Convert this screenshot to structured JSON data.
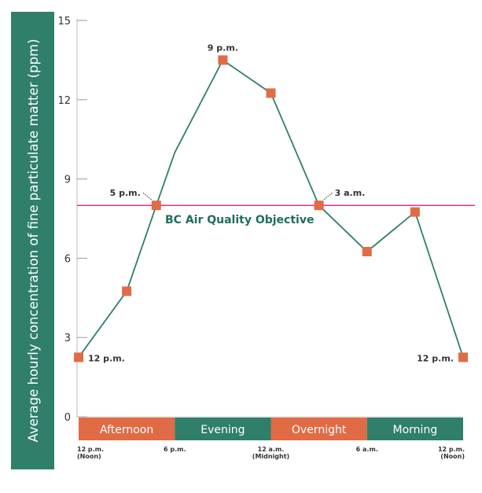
{
  "chart_data": {
    "type": "line",
    "ylabel": "Average hourly concentration of fine particulate matter (ppm)",
    "ylim": [
      0,
      15
    ],
    "yticks": [
      0,
      3,
      6,
      9,
      12,
      15
    ],
    "xlim_hours_from_noon": [
      0,
      24
    ],
    "x_tick_labels": [
      {
        "hour": 0,
        "lines": [
          "12 p.m.",
          "(Noon)"
        ]
      },
      {
        "hour": 6,
        "lines": [
          "6 p.m."
        ]
      },
      {
        "hour": 12,
        "lines": [
          "12 a.m.",
          "(Midnight)"
        ]
      },
      {
        "hour": 18,
        "lines": [
          "6 a.m."
        ]
      },
      {
        "hour": 24,
        "lines": [
          "12 p.m.",
          "(Noon)"
        ]
      }
    ],
    "points": [
      {
        "x": "12 p.m.",
        "hour": 0,
        "y": 2.25,
        "marker": true
      },
      {
        "x": "3 p.m.",
        "hour": 3,
        "y": 4.75,
        "marker": true
      },
      {
        "x": "5 p.m.",
        "hour": 4.85,
        "y": 8.0,
        "marker": true
      },
      {
        "x": "6 p.m.",
        "hour": 6,
        "y": 10.0,
        "marker": false
      },
      {
        "x": "9 p.m.",
        "hour": 9,
        "y": 13.5,
        "marker": true
      },
      {
        "x": "12 a.m.",
        "hour": 12,
        "y": 12.25,
        "marker": true
      },
      {
        "x": "3 a.m.",
        "hour": 15,
        "y": 8.0,
        "marker": true
      },
      {
        "x": "6 a.m.",
        "hour": 18,
        "y": 6.25,
        "marker": true
      },
      {
        "x": "9 a.m.",
        "hour": 21,
        "y": 7.75,
        "marker": true
      },
      {
        "x": "12 p.m.",
        "hour": 24,
        "y": 2.25,
        "marker": true
      }
    ],
    "annotations": [
      {
        "text": "12 p.m.",
        "point": 0
      },
      {
        "text": "5 p.m.",
        "point": 2
      },
      {
        "text": "9 p.m.",
        "point": 4
      },
      {
        "text": "3 a.m.",
        "point": 6
      },
      {
        "text": "12 p.m.",
        "point": 9
      }
    ],
    "reference_line": {
      "y": 8,
      "label": "BC Air Quality Objective",
      "color": "#e0338f"
    },
    "periods": [
      {
        "label": "Afternoon",
        "from": 0,
        "to": 6,
        "color": "#e06b45"
      },
      {
        "label": "Evening",
        "from": 6,
        "to": 12,
        "color": "#2f7f6a"
      },
      {
        "label": "Overnight",
        "from": 12,
        "to": 18,
        "color": "#e06b45"
      },
      {
        "label": "Morning",
        "from": 18,
        "to": 24,
        "color": "#2f7f6a"
      }
    ],
    "line_color": "#2f7f6a",
    "marker_color": "#e06b45",
    "grid": false
  }
}
